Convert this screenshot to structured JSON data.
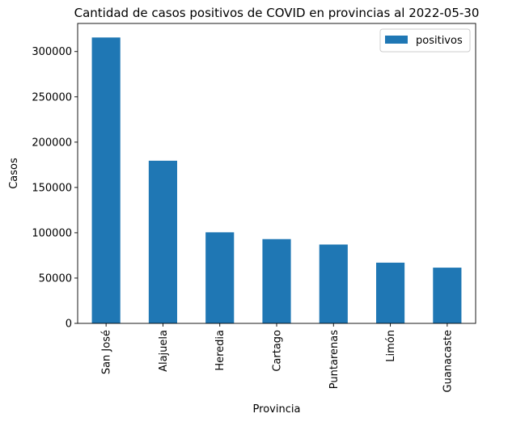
{
  "chart_data": {
    "type": "bar",
    "title": "Cantidad de casos positivos de COVID en provincias al 2022-05-30",
    "xlabel": "Provincia",
    "ylabel": "Casos",
    "categories": [
      "San José",
      "Alajuela",
      "Heredia",
      "Cartago",
      "Puntarenas",
      "Limón",
      "Guanacaste"
    ],
    "series": [
      {
        "name": "positivos",
        "values": [
          315500,
          179500,
          100500,
          93000,
          87000,
          67000,
          61500
        ],
        "color": "#1f77b4"
      }
    ],
    "ylim": [
      0,
      331000
    ],
    "yticks": [
      0,
      50000,
      100000,
      150000,
      200000,
      250000,
      300000
    ],
    "legend_position": "top-right",
    "grid": false
  }
}
